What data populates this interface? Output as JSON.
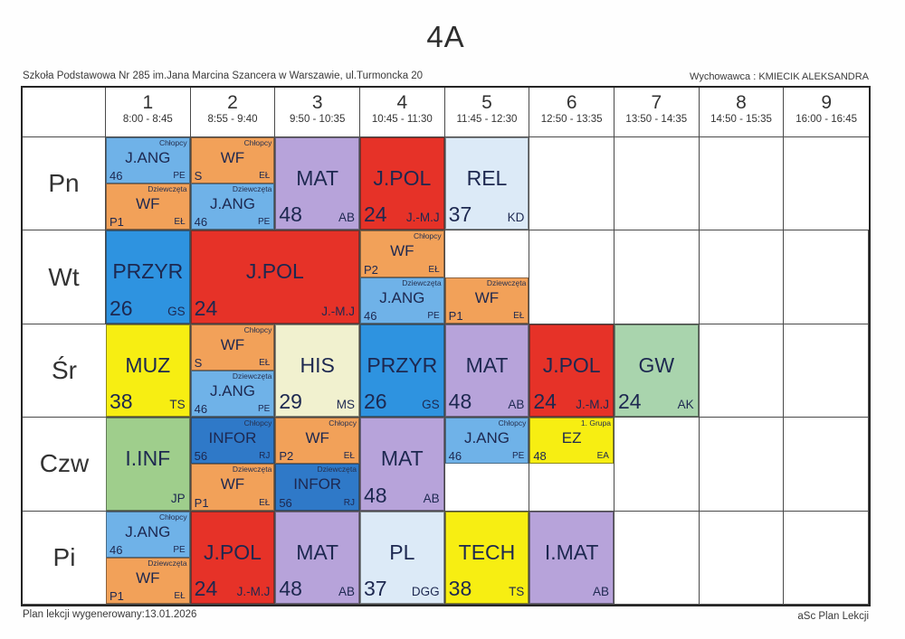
{
  "page": {
    "class_name": "4A",
    "school": "Szkoła Podstawowa Nr 285 im.Jana Marcina Szancera w Warszawie, ul.Turmoncka 20",
    "homeroom": "Wychowawca : KMIECIK ALEKSANDRA",
    "footer_left": "Plan lekcji wygenerowany:13.01.2026",
    "footer_right": "aSc Plan Lekcji"
  },
  "colors": {
    "jang": "#6fb2e8",
    "wf": "#f2a159",
    "mat": "#b7a3da",
    "jpol": "#e63228",
    "pale": "#dceaf7",
    "przyr": "#2e93e0",
    "yellow": "#f7ee12",
    "his": "#f1f1cf",
    "gw": "#a9d4ad",
    "iinf": "#9fce8c",
    "infor": "#2f79c8"
  },
  "periods": [
    {
      "num": "1",
      "time": "8:00 - 8:45"
    },
    {
      "num": "2",
      "time": "8:55 - 9:40"
    },
    {
      "num": "3",
      "time": "9:50 - 10:35"
    },
    {
      "num": "4",
      "time": "10:45 - 11:30"
    },
    {
      "num": "5",
      "time": "11:45 - 12:30"
    },
    {
      "num": "6",
      "time": "12:50 - 13:35"
    },
    {
      "num": "7",
      "time": "13:50 - 14:35"
    },
    {
      "num": "8",
      "time": "14:50 - 15:35"
    },
    {
      "num": "9",
      "time": "16:00 - 16:45"
    }
  ],
  "days": [
    {
      "label": "Pn",
      "lessons": [
        {
          "col": 1,
          "span": 1,
          "split": {
            "top": {
              "subject": "J.ANG",
              "group": "Chłopcy",
              "room": "46",
              "teacher": "PE",
              "color": "jang"
            },
            "bottom": {
              "subject": "WF",
              "group": "Dziewczęta",
              "room": "P1",
              "teacher": "EŁ",
              "color": "wf"
            }
          }
        },
        {
          "col": 2,
          "span": 1,
          "split": {
            "top": {
              "subject": "WF",
              "group": "Chłopcy",
              "room": "S",
              "teacher": "EŁ",
              "color": "wf"
            },
            "bottom": {
              "subject": "J.ANG",
              "group": "Dziewczęta",
              "room": "46",
              "teacher": "PE",
              "color": "jang"
            }
          }
        },
        {
          "col": 3,
          "span": 1,
          "full": {
            "subject": "MAT",
            "room": "48",
            "teacher": "AB",
            "color": "mat"
          }
        },
        {
          "col": 4,
          "span": 1,
          "full": {
            "subject": "J.POL",
            "room": "24",
            "teacher": "J.-M.J",
            "color": "jpol"
          }
        },
        {
          "col": 5,
          "span": 1,
          "full": {
            "subject": "REL",
            "room": "37",
            "teacher": "KD",
            "color": "pale"
          }
        }
      ]
    },
    {
      "label": "Wt",
      "lessons": [
        {
          "col": 1,
          "span": 1,
          "full": {
            "subject": "PRZYR",
            "room": "26",
            "teacher": "GS",
            "color": "przyr"
          }
        },
        {
          "col": 2,
          "span": 2,
          "full": {
            "subject": "J.POL",
            "room": "24",
            "teacher": "J.-M.J",
            "color": "jpol"
          }
        },
        {
          "col": 4,
          "span": 1,
          "split": {
            "top": {
              "subject": "WF",
              "group": "Chłopcy",
              "room": "P2",
              "teacher": "EŁ",
              "color": "wf"
            },
            "bottom": {
              "subject": "J.ANG",
              "group": "Dziewczęta",
              "room": "46",
              "teacher": "PE",
              "color": "jang"
            }
          }
        },
        {
          "col": 5,
          "span": 1,
          "split": {
            "bottom": {
              "subject": "WF",
              "group": "Dziewczęta",
              "room": "P1",
              "teacher": "EŁ",
              "color": "wf"
            }
          }
        }
      ]
    },
    {
      "label": "Śr",
      "lessons": [
        {
          "col": 1,
          "span": 1,
          "full": {
            "subject": "MUZ",
            "room": "38",
            "teacher": "TS",
            "color": "yellow"
          }
        },
        {
          "col": 2,
          "span": 1,
          "split": {
            "top": {
              "subject": "WF",
              "group": "Chłopcy",
              "room": "S",
              "teacher": "EŁ",
              "color": "wf"
            },
            "bottom": {
              "subject": "J.ANG",
              "group": "Dziewczęta",
              "room": "46",
              "teacher": "PE",
              "color": "jang"
            }
          }
        },
        {
          "col": 3,
          "span": 1,
          "full": {
            "subject": "HIS",
            "room": "29",
            "teacher": "MS",
            "color": "his"
          }
        },
        {
          "col": 4,
          "span": 1,
          "full": {
            "subject": "PRZYR",
            "room": "26",
            "teacher": "GS",
            "color": "przyr"
          }
        },
        {
          "col": 5,
          "span": 1,
          "full": {
            "subject": "MAT",
            "room": "48",
            "teacher": "AB",
            "color": "mat"
          }
        },
        {
          "col": 6,
          "span": 1,
          "full": {
            "subject": "J.POL",
            "room": "24",
            "teacher": "J.-M.J",
            "color": "jpol"
          }
        },
        {
          "col": 7,
          "span": 1,
          "full": {
            "subject": "GW",
            "room": "24",
            "teacher": "AK",
            "color": "gw"
          }
        }
      ]
    },
    {
      "label": "Czw",
      "lessons": [
        {
          "col": 1,
          "span": 1,
          "full": {
            "subject": "I.INF",
            "room": "",
            "teacher": "JP",
            "color": "iinf"
          }
        },
        {
          "col": 2,
          "span": 1,
          "split": {
            "top": {
              "subject": "INFOR",
              "group": "Chłopcy",
              "room": "56",
              "teacher": "RJ",
              "color": "infor"
            },
            "bottom": {
              "subject": "WF",
              "group": "Dziewczęta",
              "room": "P1",
              "teacher": "EŁ",
              "color": "wf"
            }
          }
        },
        {
          "col": 3,
          "span": 1,
          "split": {
            "top": {
              "subject": "WF",
              "group": "Chłopcy",
              "room": "P2",
              "teacher": "EŁ",
              "color": "wf"
            },
            "bottom": {
              "subject": "INFOR",
              "group": "Dziewczęta",
              "room": "56",
              "teacher": "RJ",
              "color": "infor"
            }
          }
        },
        {
          "col": 4,
          "span": 1,
          "full": {
            "subject": "MAT",
            "room": "48",
            "teacher": "AB",
            "color": "mat"
          }
        },
        {
          "col": 5,
          "span": 1,
          "split": {
            "top": {
              "subject": "J.ANG",
              "group": "Chłopcy",
              "room": "46",
              "teacher": "PE",
              "color": "jang"
            }
          }
        },
        {
          "col": 6,
          "span": 1,
          "split": {
            "top": {
              "subject": "EZ",
              "group": "1. Grupa",
              "room": "48",
              "teacher": "EA",
              "color": "yellow"
            }
          }
        }
      ]
    },
    {
      "label": "Pi",
      "lessons": [
        {
          "col": 1,
          "span": 1,
          "split": {
            "top": {
              "subject": "J.ANG",
              "group": "Chłopcy",
              "room": "46",
              "teacher": "PE",
              "color": "jang"
            },
            "bottom": {
              "subject": "WF",
              "group": "Dziewczęta",
              "room": "P1",
              "teacher": "EŁ",
              "color": "wf"
            }
          }
        },
        {
          "col": 2,
          "span": 1,
          "full": {
            "subject": "J.POL",
            "room": "24",
            "teacher": "J.-M.J",
            "color": "jpol"
          }
        },
        {
          "col": 3,
          "span": 1,
          "full": {
            "subject": "MAT",
            "room": "48",
            "teacher": "AB",
            "color": "mat"
          }
        },
        {
          "col": 4,
          "span": 1,
          "full": {
            "subject": "PL",
            "room": "37",
            "teacher": "DGG",
            "color": "pale"
          }
        },
        {
          "col": 5,
          "span": 1,
          "full": {
            "subject": "TECH",
            "room": "38",
            "teacher": "TS",
            "color": "yellow"
          }
        },
        {
          "col": 6,
          "span": 1,
          "full": {
            "subject": "I.MAT",
            "room": "",
            "teacher": "AB",
            "color": "mat"
          }
        }
      ]
    }
  ]
}
